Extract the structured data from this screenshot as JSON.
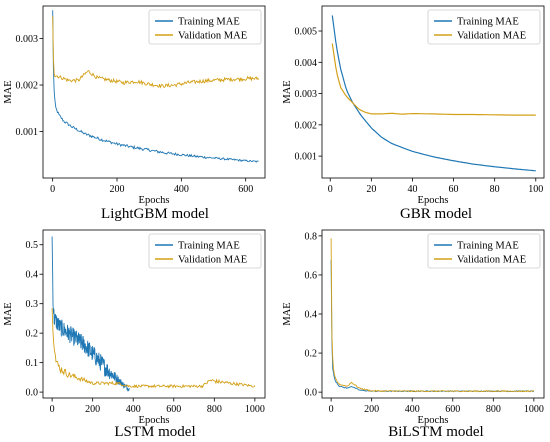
{
  "colors": {
    "training": "#1f77b4",
    "validation": "#d4a017"
  },
  "panels": [
    {
      "id": "lightgbm",
      "caption": "LightGBM model",
      "xlabel": "Epochs",
      "ylabel": "MAE",
      "legend": [
        "Training MAE",
        "Validation MAE"
      ],
      "legend_loc": "top-right",
      "xticks": [
        0,
        200,
        400,
        600
      ],
      "yticks": [
        0.001,
        0.002,
        0.003
      ],
      "ytick_labels": [
        "0.001",
        "0.002",
        "0.003"
      ]
    },
    {
      "id": "gbr",
      "caption": "GBR model",
      "xlabel": "Epochs",
      "ylabel": "MAE",
      "legend": [
        "Training MAE",
        "Validation MAE"
      ],
      "legend_loc": "top-right",
      "xticks": [
        0,
        20,
        40,
        60,
        80,
        100
      ],
      "yticks": [
        0.001,
        0.002,
        0.003,
        0.004,
        0.005
      ],
      "ytick_labels": [
        "0.001",
        "0.002",
        "0.003",
        "0.004",
        "0.005"
      ]
    },
    {
      "id": "lstm",
      "caption": "LSTM model",
      "xlabel": "Epochs",
      "ylabel": "MAE",
      "legend": [
        "Training MAE",
        "Validation MAE"
      ],
      "legend_loc": "top-right",
      "xticks": [
        0,
        200,
        400,
        600,
        800,
        1000
      ],
      "yticks": [
        0.0,
        0.1,
        0.2,
        0.3,
        0.4,
        0.5
      ],
      "ytick_labels": [
        "0.0",
        "0.1",
        "0.2",
        "0.3",
        "0.4",
        "0.5"
      ]
    },
    {
      "id": "bilstm",
      "caption": "BiLSTM model",
      "xlabel": "Epochs",
      "ylabel": "MAE",
      "legend": [
        "Training MAE",
        "Validation MAE"
      ],
      "legend_loc": "top-right",
      "xticks": [
        0,
        200,
        400,
        600,
        800,
        1000
      ],
      "yticks": [
        0.0,
        0.2,
        0.4,
        0.6,
        0.8
      ],
      "ytick_labels": [
        "0.0",
        "0.2",
        "0.4",
        "0.6",
        "0.8"
      ]
    }
  ],
  "chart_data": [
    {
      "type": "line",
      "xlim": [
        -30,
        660
      ],
      "ylim": [
        0.0,
        0.0037
      ],
      "series": [
        {
          "name": "Training MAE",
          "x": [
            0,
            3,
            6,
            10,
            20,
            35,
            60,
            100,
            150,
            200,
            250,
            300,
            350,
            400,
            450,
            500,
            550,
            600,
            640
          ],
          "y": [
            0.0036,
            0.0021,
            0.0017,
            0.0015,
            0.00135,
            0.00122,
            0.0011,
            0.00095,
            0.00083,
            0.00073,
            0.00066,
            0.0006,
            0.00054,
            0.0005,
            0.00046,
            0.00043,
            0.0004,
            0.00037,
            0.00035
          ],
          "noise": 3e-05
        },
        {
          "name": "Validation MAE",
          "x": [
            0,
            3,
            6,
            12,
            30,
            50,
            80,
            110,
            140,
            180,
            220,
            260,
            300,
            340,
            380,
            420,
            460,
            500,
            540,
            580,
            620,
            640
          ],
          "y": [
            0.0035,
            0.0024,
            0.0022,
            0.0022,
            0.00215,
            0.0021,
            0.0021,
            0.0023,
            0.00215,
            0.0021,
            0.00205,
            0.00208,
            0.00202,
            0.00198,
            0.002,
            0.00205,
            0.00208,
            0.0021,
            0.00212,
            0.00213,
            0.00214,
            0.00214
          ],
          "noise": 4e-05
        }
      ]
    },
    {
      "type": "line",
      "xlim": [
        -4,
        104
      ],
      "ylim": [
        0.0003,
        0.0058
      ],
      "series": [
        {
          "name": "Training MAE",
          "x": [
            1,
            3,
            5,
            8,
            11,
            15,
            20,
            25,
            30,
            40,
            50,
            60,
            70,
            80,
            90,
            100
          ],
          "y": [
            0.0055,
            0.0045,
            0.0038,
            0.0031,
            0.0027,
            0.0023,
            0.0019,
            0.0016,
            0.0014,
            0.00115,
            0.00098,
            0.00085,
            0.00074,
            0.00066,
            0.00059,
            0.00053
          ],
          "noise": 0
        },
        {
          "name": "Validation MAE",
          "x": [
            1,
            3,
            5,
            8,
            11,
            14,
            17,
            20,
            25,
            30,
            35,
            40,
            50,
            60,
            70,
            80,
            90,
            100
          ],
          "y": [
            0.0046,
            0.0037,
            0.0032,
            0.0029,
            0.0027,
            0.0025,
            0.0024,
            0.00235,
            0.00235,
            0.00237,
            0.00234,
            0.00236,
            0.00235,
            0.00233,
            0.00233,
            0.00232,
            0.00231,
            0.00231
          ],
          "noise": 0
        }
      ]
    },
    {
      "type": "line",
      "xlim": [
        -45,
        1050
      ],
      "ylim": [
        -0.02,
        0.55
      ],
      "series": [
        {
          "name": "Training MAE",
          "x": [
            0,
            5,
            10,
            20,
            40,
            80,
            120,
            160,
            200,
            240,
            280,
            320,
            360,
            380
          ],
          "y": [
            0.52,
            0.3,
            0.25,
            0.24,
            0.22,
            0.2,
            0.18,
            0.16,
            0.13,
            0.1,
            0.07,
            0.045,
            0.02,
            0.01
          ],
          "noise": 0.03
        },
        {
          "name": "Validation MAE",
          "x": [
            0,
            5,
            10,
            20,
            40,
            80,
            120,
            160,
            200,
            260,
            320,
            380,
            450,
            500,
            560,
            620,
            680,
            740,
            780,
            820,
            880,
            940,
            1000
          ],
          "y": [
            0.3,
            0.2,
            0.16,
            0.1,
            0.08,
            0.06,
            0.05,
            0.04,
            0.03,
            0.03,
            0.03,
            0.02,
            0.02,
            0.02,
            0.02,
            0.02,
            0.02,
            0.02,
            0.04,
            0.035,
            0.03,
            0.025,
            0.02
          ],
          "noise": 0.015
        }
      ]
    },
    {
      "type": "line",
      "xlim": [
        -45,
        1050
      ],
      "ylim": [
        -0.03,
        0.83
      ],
      "series": [
        {
          "name": "Training MAE",
          "x": [
            0,
            3,
            6,
            10,
            20,
            40,
            80,
            100,
            140,
            200,
            400,
            600,
            800,
            1000
          ],
          "y": [
            0.68,
            0.3,
            0.15,
            0.1,
            0.06,
            0.03,
            0.02,
            0.03,
            0.01,
            0.005,
            0.005,
            0.005,
            0.005,
            0.005
          ],
          "noise": 0.008
        },
        {
          "name": "Validation MAE",
          "x": [
            0,
            3,
            6,
            10,
            20,
            40,
            80,
            100,
            140,
            200,
            400,
            600,
            800,
            1000
          ],
          "y": [
            0.79,
            0.35,
            0.2,
            0.12,
            0.07,
            0.04,
            0.03,
            0.05,
            0.02,
            0.006,
            0.005,
            0.005,
            0.005,
            0.005
          ],
          "noise": 0.01
        }
      ]
    }
  ]
}
